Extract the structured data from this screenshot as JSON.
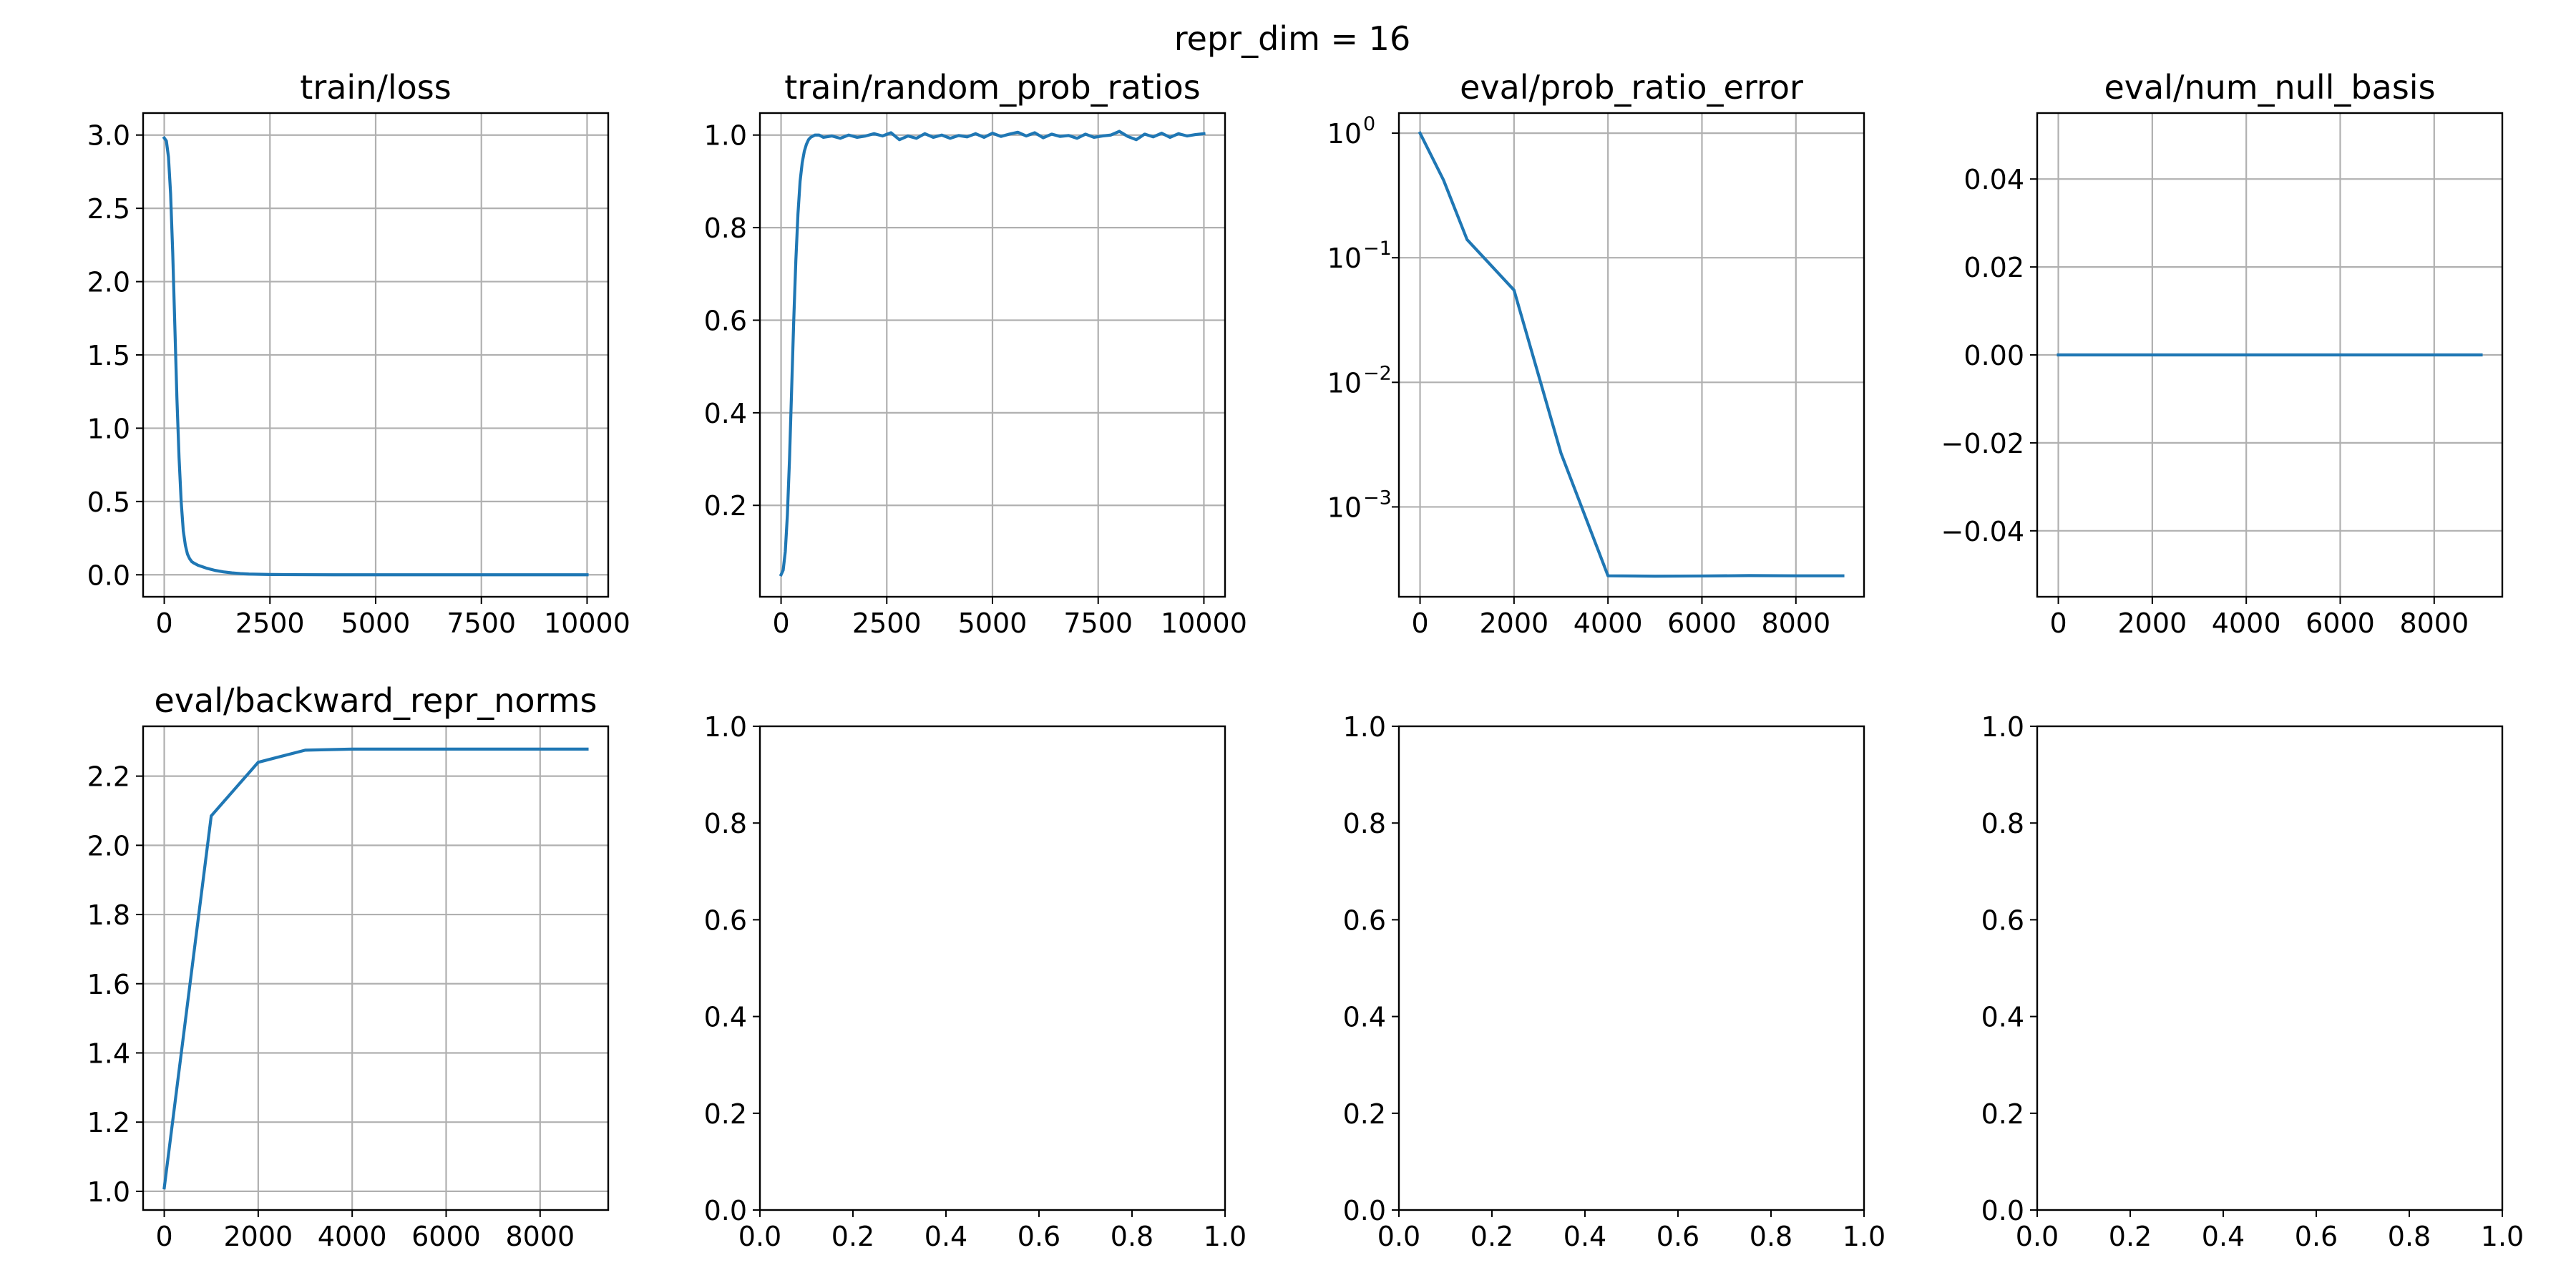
{
  "figure": {
    "suptitle": "repr_dim = 16",
    "line_color": "#1f77b4",
    "grid_color": "#b0b0b0"
  },
  "chart_data": [
    {
      "id": "train-loss",
      "type": "line",
      "title": "train/loss",
      "xlabel": "",
      "ylabel": "",
      "xlim": [
        -500,
        10500
      ],
      "ylim": [
        -0.15,
        3.15
      ],
      "xticks": [
        0,
        2500,
        5000,
        7500,
        10000
      ],
      "xtick_labels": [
        "0",
        "2500",
        "5000",
        "7500",
        "10000"
      ],
      "yticks": [
        0.0,
        0.5,
        1.0,
        1.5,
        2.0,
        2.5,
        3.0
      ],
      "ytick_labels": [
        "0.0",
        "0.5",
        "1.0",
        "1.5",
        "2.0",
        "2.5",
        "3.0"
      ],
      "grid": true,
      "series": [
        {
          "x": [
            0,
            50,
            100,
            150,
            200,
            250,
            300,
            350,
            400,
            450,
            500,
            550,
            600,
            650,
            700,
            800,
            900,
            1000,
            1200,
            1400,
            1600,
            1800,
            2000,
            2500,
            3000,
            4000,
            5000,
            6000,
            7000,
            8000,
            9000,
            10000
          ],
          "y": [
            2.98,
            2.96,
            2.85,
            2.6,
            2.2,
            1.7,
            1.2,
            0.8,
            0.5,
            0.3,
            0.2,
            0.14,
            0.11,
            0.09,
            0.08,
            0.065,
            0.055,
            0.045,
            0.03,
            0.02,
            0.013,
            0.008,
            0.005,
            0.002,
            0.001,
            0.0,
            0.0,
            0.0,
            0.0,
            0.0,
            0.0,
            0.0
          ]
        }
      ]
    },
    {
      "id": "train-random-prob-ratios",
      "type": "line",
      "title": "train/random_prob_ratios",
      "xlabel": "",
      "ylabel": "",
      "xlim": [
        -500,
        10500
      ],
      "ylim": [
        0.0025,
        1.0475
      ],
      "xticks": [
        0,
        2500,
        5000,
        7500,
        10000
      ],
      "xtick_labels": [
        "0",
        "2500",
        "5000",
        "7500",
        "10000"
      ],
      "yticks": [
        0.2,
        0.4,
        0.6,
        0.8,
        1.0
      ],
      "ytick_labels": [
        "0.2",
        "0.4",
        "0.6",
        "0.8",
        "1.0"
      ],
      "grid": true,
      "series": [
        {
          "x": [
            0,
            50,
            100,
            150,
            200,
            250,
            300,
            350,
            400,
            450,
            500,
            550,
            600,
            650,
            700,
            800,
            900,
            1000,
            1200,
            1400,
            1600,
            1800,
            2000,
            2200,
            2400,
            2600,
            2800,
            3000,
            3200,
            3400,
            3600,
            3800,
            4000,
            4200,
            4400,
            4600,
            4800,
            5000,
            5200,
            5400,
            5600,
            5800,
            6000,
            6200,
            6400,
            6600,
            6800,
            7000,
            7200,
            7400,
            7600,
            7800,
            8000,
            8200,
            8400,
            8600,
            8800,
            9000,
            9200,
            9400,
            9600,
            9800,
            10000
          ],
          "y": [
            0.05,
            0.06,
            0.1,
            0.18,
            0.3,
            0.45,
            0.6,
            0.73,
            0.83,
            0.9,
            0.94,
            0.965,
            0.98,
            0.99,
            0.995,
            1.0,
            1.0,
            0.995,
            0.998,
            0.993,
            1.0,
            0.995,
            0.998,
            1.003,
            0.998,
            1.005,
            0.99,
            0.998,
            0.993,
            1.003,
            0.995,
            1.0,
            0.993,
            0.999,
            0.996,
            1.003,
            0.995,
            1.004,
            0.997,
            1.002,
            1.006,
            0.998,
            1.005,
            0.994,
            1.002,
            0.997,
            0.999,
            0.993,
            1.002,
            0.995,
            0.998,
            1.0,
            1.008,
            0.997,
            0.99,
            1.002,
            0.996,
            1.004,
            0.995,
            1.003,
            0.998,
            1.001,
            1.003
          ]
        }
      ]
    },
    {
      "id": "eval-prob-ratio-error",
      "type": "line",
      "title": "eval/prob_ratio_error",
      "xlabel": "",
      "ylabel": "",
      "yscale": "log",
      "xlim": [
        -450,
        9450
      ],
      "ylim": [
        0.00019,
        1.45
      ],
      "xticks": [
        0,
        2000,
        4000,
        6000,
        8000
      ],
      "xtick_labels": [
        "0",
        "2000",
        "4000",
        "6000",
        "8000"
      ],
      "yticks": [
        1,
        0.1,
        0.01,
        0.001
      ],
      "ytick_labels": [
        {
          "base": "10",
          "exp": "0"
        },
        {
          "base": "10",
          "exp": "−1"
        },
        {
          "base": "10",
          "exp": "−2"
        },
        {
          "base": "10",
          "exp": "−3"
        }
      ],
      "grid": true,
      "series": [
        {
          "x": [
            0,
            500,
            1000,
            2000,
            3000,
            4000,
            5000,
            6000,
            7000,
            8000,
            9000
          ],
          "y": [
            1.0,
            0.42,
            0.14,
            0.055,
            0.0027,
            0.00028,
            0.000278,
            0.000279,
            0.000281,
            0.00028,
            0.00028
          ]
        }
      ]
    },
    {
      "id": "eval-num-null-basis",
      "type": "line",
      "title": "eval/num_null_basis",
      "xlabel": "",
      "ylabel": "",
      "xlim": [
        -450,
        9450
      ],
      "ylim": [
        -0.055,
        0.055
      ],
      "xticks": [
        0,
        2000,
        4000,
        6000,
        8000
      ],
      "xtick_labels": [
        "0",
        "2000",
        "4000",
        "6000",
        "8000"
      ],
      "yticks": [
        0.04,
        0.02,
        0.0,
        -0.02,
        -0.04
      ],
      "ytick_labels": [
        "0.04",
        "0.02",
        "0.00",
        "−0.02",
        "−0.04"
      ],
      "grid": true,
      "series": [
        {
          "x": [
            0,
            1000,
            2000,
            3000,
            4000,
            5000,
            6000,
            7000,
            8000,
            9000
          ],
          "y": [
            0,
            0,
            0,
            0,
            0,
            0,
            0,
            0,
            0,
            0
          ]
        }
      ]
    },
    {
      "id": "eval-backward-repr-norms",
      "type": "line",
      "title": "eval/backward_repr_norms",
      "xlabel": "",
      "ylabel": "",
      "xlim": [
        -450,
        9450
      ],
      "ylim": [
        0.946,
        2.344
      ],
      "xticks": [
        0,
        2000,
        4000,
        6000,
        8000
      ],
      "xtick_labels": [
        "0",
        "2000",
        "4000",
        "6000",
        "8000"
      ],
      "yticks": [
        1.0,
        1.2,
        1.4,
        1.6,
        1.8,
        2.0,
        2.2
      ],
      "ytick_labels": [
        "1.0",
        "1.2",
        "1.4",
        "1.6",
        "1.8",
        "2.0",
        "2.2"
      ],
      "grid": true,
      "series": [
        {
          "x": [
            0,
            1000,
            2000,
            3000,
            4000,
            5000,
            6000,
            7000,
            8000,
            9000
          ],
          "y": [
            1.01,
            2.085,
            2.24,
            2.275,
            2.278,
            2.278,
            2.278,
            2.278,
            2.278,
            2.278
          ]
        }
      ]
    },
    {
      "id": "empty-1",
      "type": "line",
      "title": "",
      "xlim": [
        0,
        1
      ],
      "ylim": [
        0,
        1
      ],
      "xticks": [
        0,
        0.2,
        0.4,
        0.6,
        0.8,
        1.0
      ],
      "xtick_labels": [
        "0.0",
        "0.2",
        "0.4",
        "0.6",
        "0.8",
        "1.0"
      ],
      "yticks": [
        0,
        0.2,
        0.4,
        0.6,
        0.8,
        1.0
      ],
      "ytick_labels": [
        "0.0",
        "0.2",
        "0.4",
        "0.6",
        "0.8",
        "1.0"
      ],
      "grid": false,
      "series": []
    },
    {
      "id": "empty-2",
      "type": "line",
      "title": "",
      "xlim": [
        0,
        1
      ],
      "ylim": [
        0,
        1
      ],
      "xticks": [
        0,
        0.2,
        0.4,
        0.6,
        0.8,
        1.0
      ],
      "xtick_labels": [
        "0.0",
        "0.2",
        "0.4",
        "0.6",
        "0.8",
        "1.0"
      ],
      "yticks": [
        0,
        0.2,
        0.4,
        0.6,
        0.8,
        1.0
      ],
      "ytick_labels": [
        "0.0",
        "0.2",
        "0.4",
        "0.6",
        "0.8",
        "1.0"
      ],
      "grid": false,
      "series": []
    },
    {
      "id": "empty-3",
      "type": "line",
      "title": "",
      "xlim": [
        0,
        1
      ],
      "ylim": [
        0,
        1
      ],
      "xticks": [
        0,
        0.2,
        0.4,
        0.6,
        0.8,
        1.0
      ],
      "xtick_labels": [
        "0.0",
        "0.2",
        "0.4",
        "0.6",
        "0.8",
        "1.0"
      ],
      "yticks": [
        0,
        0.2,
        0.4,
        0.6,
        0.8,
        1.0
      ],
      "ytick_labels": [
        "0.0",
        "0.2",
        "0.4",
        "0.6",
        "0.8",
        "1.0"
      ],
      "grid": false,
      "series": []
    }
  ]
}
